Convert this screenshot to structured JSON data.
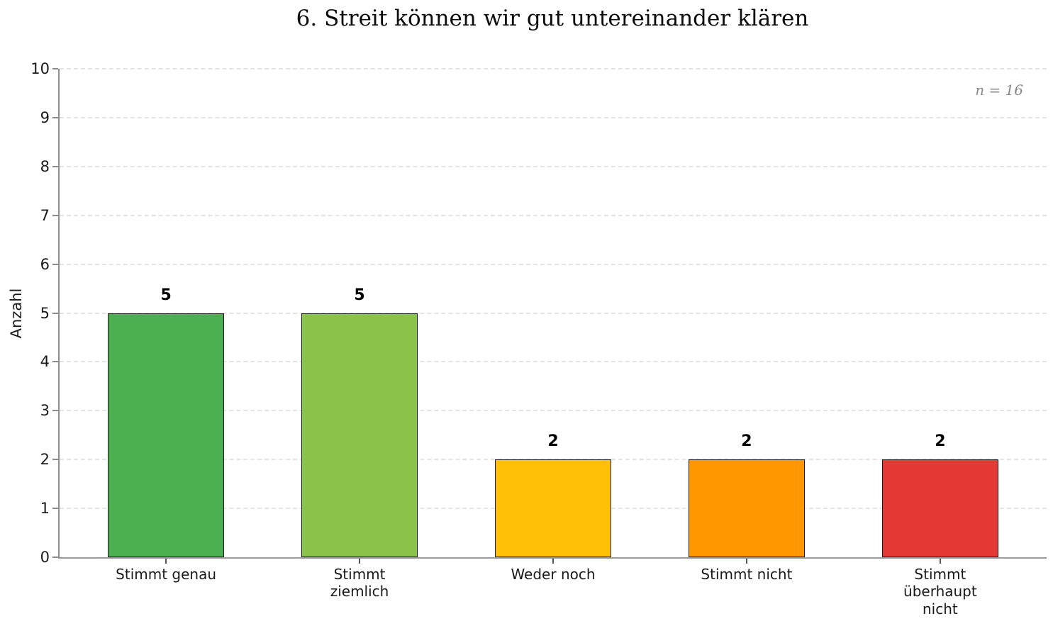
{
  "chart_data": {
    "type": "bar",
    "title": "6. Streit können wir gut untereinander klären",
    "annotation": "n = 16",
    "xlabel": "",
    "ylabel": "Anzahl",
    "categories": [
      "Stimmt genau",
      "Stimmt\nziemlich",
      "Weder noch",
      "Stimmt nicht",
      "Stimmt\nüberhaupt\nnicht"
    ],
    "values": [
      5,
      5,
      2,
      2,
      2
    ],
    "value_labels": [
      "5",
      "5",
      "2",
      "2",
      "2"
    ],
    "ylim": [
      0,
      10
    ],
    "yticks": [
      0,
      1,
      2,
      3,
      4,
      5,
      6,
      7,
      8,
      9,
      10
    ],
    "grid": "horizontal-dashed",
    "legend": "none",
    "colors": {
      "bars": [
        "#4caf50",
        "#8bc34a",
        "#ffc107",
        "#ff9800",
        "#e53935"
      ],
      "bar_edge": "#1a1a1a",
      "gridline": "#e4e4e4",
      "axis_spine": "#8c8c8c",
      "annotation_text": "#8a8a8a",
      "text": "#1a1a1a",
      "background": "#ffffff"
    }
  }
}
